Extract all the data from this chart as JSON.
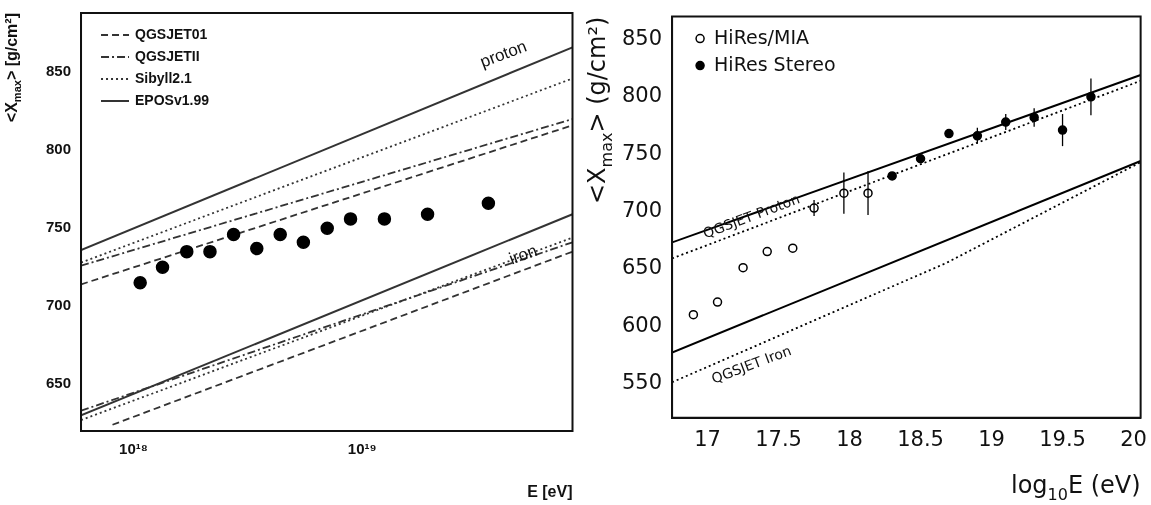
{
  "chart_data": [
    {
      "type": "line",
      "xlabel": "E [eV]",
      "ylabel": "<X$_{max}$> [g/cm²]",
      "log": "x",
      "legend": "top left",
      "xlim": [
        5.9e+17,
        8.3e+19
      ],
      "ylim": [
        620,
        888
      ],
      "xticks": [
        {
          "value": 1e+18,
          "label": "10¹⁸"
        },
        {
          "value": 1e+19,
          "label": "10¹⁹"
        }
      ],
      "yticks": [
        650,
        700,
        750,
        800,
        850
      ],
      "annotations": [
        "proton",
        "iron"
      ],
      "series": [
        {
          "name": "QGSJET01",
          "type": "line",
          "color": "#333333",
          "line_style": "dashed",
          "marker": "none",
          "x": [
            5.9e+17,
            8.3e+19
          ],
          "values": [
            714,
            816
          ]
        },
        {
          "name": "QGSJETII",
          "type": "line",
          "color": "#333333",
          "line_style": "dashdot",
          "marker": "none",
          "x": [
            5.9e+17,
            8.3e+19
          ],
          "values": [
            726,
            820
          ]
        },
        {
          "name": "Sibyll2.1",
          "type": "line",
          "color": "#333333",
          "line_style": "dotted",
          "marker": "none",
          "x": [
            5.9e+17,
            8.3e+19
          ],
          "values": [
            728,
            846
          ]
        },
        {
          "name": "EPOSv1.99",
          "type": "line",
          "color": "#333333",
          "line_style": "solid",
          "marker": "none",
          "x": [
            5.9e+17,
            8.3e+19
          ],
          "values": [
            736,
            866
          ]
        },
        {
          "type": "line",
          "color": "#333333",
          "line_style": "dashed",
          "marker": "none",
          "x": [
            8.1e+17,
            8.3e+19
          ],
          "values": [
            624,
            735
          ]
        },
        {
          "type": "line",
          "color": "#333333",
          "line_style": "dashdot",
          "marker": "none",
          "x": [
            5.9e+17,
            8.3e+19
          ],
          "values": [
            633,
            741
          ]
        },
        {
          "type": "line",
          "color": "#333333",
          "line_style": "dotted",
          "marker": "none",
          "x": [
            5.9e+17,
            8.3e+19
          ],
          "values": [
            627,
            744
          ]
        },
        {
          "type": "line",
          "color": "#333333",
          "line_style": "solid",
          "marker": "none",
          "x": [
            5.9e+17,
            8.3e+19
          ],
          "values": [
            630,
            759
          ]
        },
        {
          "type": "scatter",
          "color": "#000000",
          "marker": "circle",
          "x": [
            1.07e+18,
            1.34e+18,
            1.71e+18,
            2.16e+18,
            2.74e+18,
            3.46e+18,
            4.38e+18,
            5.53e+18,
            7.03e+18,
            8.89e+18,
            1.25e+19,
            1.93e+19,
            3.56e+19
          ],
          "values": [
            715,
            725,
            735,
            735,
            746,
            737,
            746,
            741,
            750,
            756,
            756,
            759,
            766
          ]
        }
      ]
    },
    {
      "type": "line",
      "xlabel": "log$_{10}$E (eV)",
      "ylabel": "<X$_{max}$> (g/cm²)",
      "legend": "top left",
      "xlim": [
        16.75,
        20.05
      ],
      "ylim": [
        520,
        870
      ],
      "xticks": [
        17,
        17.5,
        18,
        18.5,
        19,
        19.5,
        20
      ],
      "yticks": [
        550,
        600,
        650,
        700,
        750,
        800,
        850
      ],
      "annotations": [
        "QGSJET Proton",
        "QGSJET Iron"
      ],
      "series": [
        {
          "name": "HiRes/MIA",
          "type": "scatter",
          "color": "#000000",
          "marker": "circle_open",
          "x": [
            16.9,
            17.07,
            17.25,
            17.42,
            17.6,
            17.75,
            17.96,
            18.13
          ],
          "values": [
            610,
            621,
            651,
            665,
            668,
            703,
            716,
            716
          ],
          "errors": [
            null,
            null,
            null,
            null,
            null,
            7,
            18,
            19
          ]
        },
        {
          "name": "HiRes Stereo",
          "type": "scatter",
          "color": "#000000",
          "marker": "circle",
          "x": [
            18.3,
            18.5,
            18.7,
            18.9,
            19.1,
            19.3,
            19.5,
            19.7
          ],
          "values": [
            731,
            746,
            768,
            766,
            778,
            782,
            771,
            800
          ],
          "errors": [
            null,
            null,
            null,
            7,
            7,
            8,
            14,
            16
          ]
        },
        {
          "type": "line",
          "color": "#000000",
          "line_style": "solid",
          "marker": "none",
          "x": [
            16.75,
            20.05
          ],
          "values": [
            673,
            819
          ]
        },
        {
          "type": "line",
          "color": "#000000",
          "line_style": "dotted",
          "marker": "none",
          "x": [
            16.75,
            20.05
          ],
          "values": [
            659,
            814
          ]
        },
        {
          "type": "line",
          "color": "#000000",
          "line_style": "solid",
          "marker": "none",
          "x": [
            16.75,
            20.05
          ],
          "values": [
            577,
            744
          ]
        },
        {
          "type": "line",
          "color": "#000000",
          "line_style": "dotted",
          "marker": "none",
          "x": [
            16.75,
            18.68,
            20.05
          ],
          "values": [
            551,
            655,
            743
          ]
        }
      ]
    }
  ]
}
